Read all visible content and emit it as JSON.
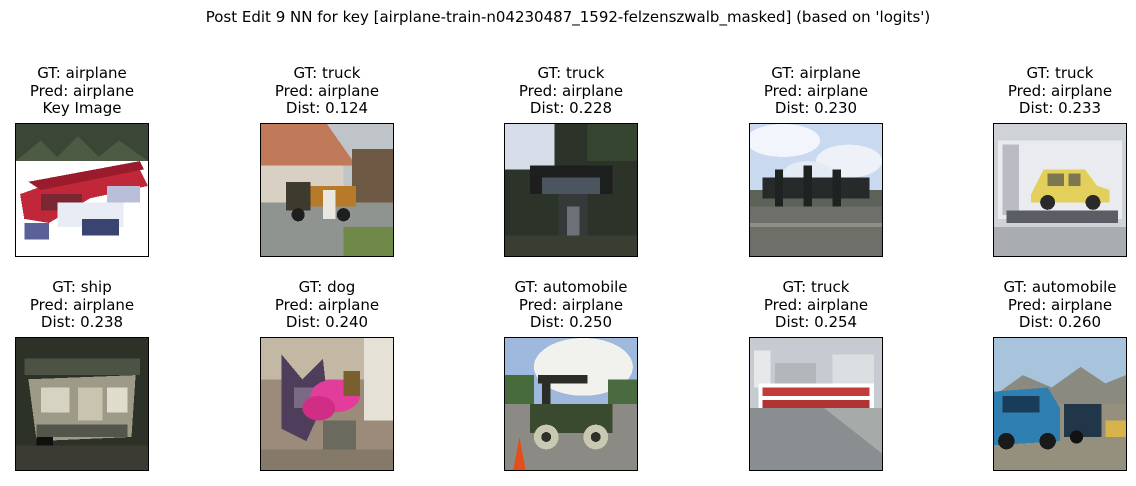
{
  "chart_data": {
    "type": "image-grid",
    "title": "Post Edit 9 NN for key [airplane-train-n04230487_1592-felzenszwalb_masked] (based on 'logits')",
    "rows": 2,
    "cols": 5,
    "panels": [
      {
        "gt": "GT: airplane",
        "pred": "Pred: airplane",
        "note": "Key Image",
        "dist": null,
        "scene": "key-red-plane",
        "icon": "red-airplane-photo-icon"
      },
      {
        "gt": "GT: truck",
        "pred": "Pred: airplane",
        "note": "Dist: 0.124",
        "dist": 0.124,
        "scene": "house-truck",
        "icon": "truck-near-house-photo-icon"
      },
      {
        "gt": "GT: truck",
        "pred": "Pred: airplane",
        "note": "Dist: 0.228",
        "dist": 0.228,
        "scene": "dark-truck",
        "icon": "dark-truck-photo-icon"
      },
      {
        "gt": "GT: airplane",
        "pred": "Pred: airplane",
        "note": "Dist: 0.230",
        "dist": 0.23,
        "scene": "sky-plane",
        "icon": "airplane-sky-photo-icon"
      },
      {
        "gt": "GT: truck",
        "pred": "Pred: airplane",
        "note": "Dist: 0.233",
        "dist": 0.233,
        "scene": "tow-truck",
        "icon": "tow-truck-photo-icon"
      },
      {
        "gt": "GT: ship",
        "pred": "Pred: airplane",
        "note": "Dist: 0.238",
        "dist": 0.238,
        "scene": "ship",
        "icon": "ship-photo-icon"
      },
      {
        "gt": "GT: dog",
        "pred": "Pred: airplane",
        "note": "Dist: 0.240",
        "dist": 0.24,
        "scene": "dog-flowers",
        "icon": "dog-flowers-photo-icon"
      },
      {
        "gt": "GT: automobile",
        "pred": "Pred: airplane",
        "note": "Dist: 0.250",
        "dist": 0.25,
        "scene": "old-car",
        "icon": "vintage-car-photo-icon"
      },
      {
        "gt": "GT: truck",
        "pred": "Pred: airplane",
        "note": "Dist: 0.254",
        "dist": 0.254,
        "scene": "fire-truck",
        "icon": "fire-truck-photo-icon"
      },
      {
        "gt": "GT: automobile",
        "pred": "Pred: airplane",
        "note": "Dist: 0.260",
        "dist": 0.26,
        "scene": "blue-car",
        "icon": "blue-car-photo-icon"
      }
    ]
  }
}
